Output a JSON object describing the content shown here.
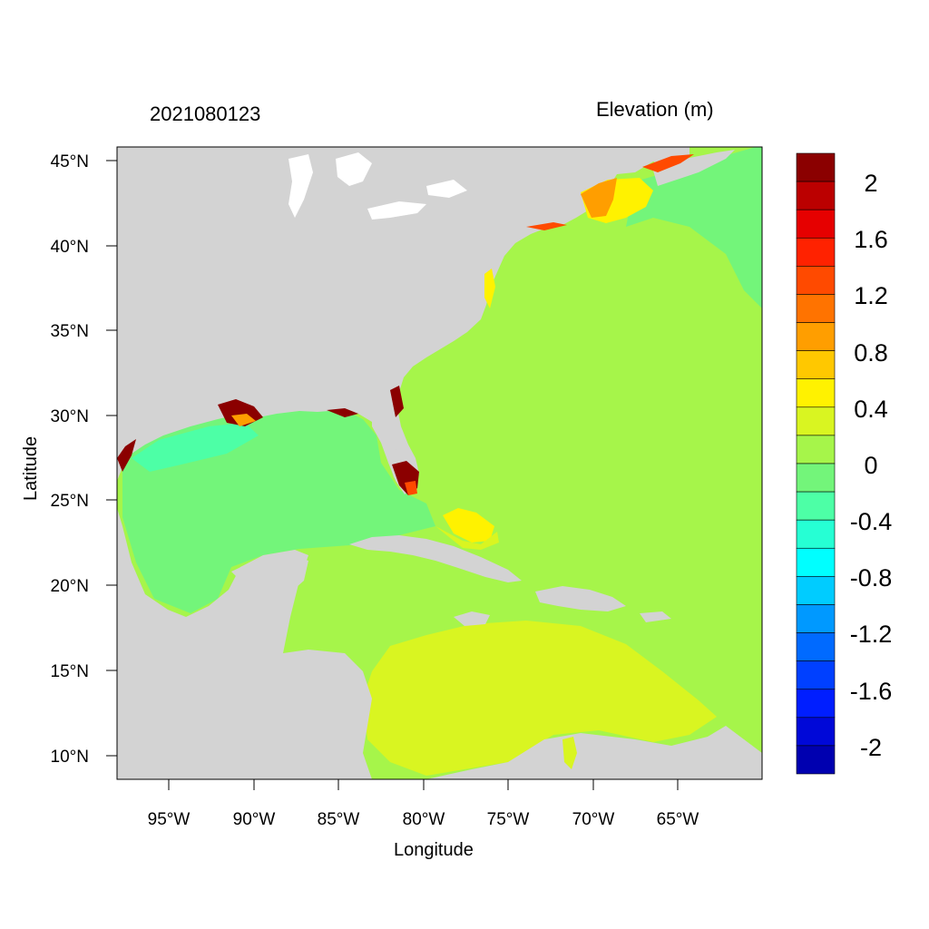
{
  "titles": {
    "left": "2021080123",
    "right": "Elevation (m)"
  },
  "axes": {
    "xlabel": "Longitude",
    "ylabel": "Latitude",
    "xticks": [
      "95°W",
      "90°W",
      "85°W",
      "80°W",
      "75°W",
      "70°W",
      "65°W"
    ],
    "yticks": [
      "45°N",
      "40°N",
      "35°N",
      "30°N",
      "25°N",
      "20°N",
      "15°N",
      "10°N"
    ]
  },
  "colorbar": {
    "labels": [
      "2",
      "1.6",
      "1.2",
      "0.8",
      "0.4",
      "0",
      "-0.4",
      "-0.8",
      "-1.2",
      "-1.6",
      "-2"
    ],
    "colors": [
      "#8b0000",
      "#bb0000",
      "#e60000",
      "#ff2200",
      "#ff4a00",
      "#ff7300",
      "#ff9e00",
      "#ffc800",
      "#fff200",
      "#d9f521",
      "#a6f54a",
      "#73f57a",
      "#4dffa6",
      "#26ffd4",
      "#00ffff",
      "#00ccff",
      "#0099ff",
      "#006aff",
      "#0040ff",
      "#001eff",
      "#0008d8",
      "#0000b0"
    ]
  },
  "colors": {
    "land": "#d3d3d3",
    "water_zero_plus": "#a6f54a",
    "water_zero_minus": "#73f57a",
    "water_low": "#4dffa6",
    "caribbean": "#d9f521",
    "surge_high": "#8b0000",
    "surge_mid": "#ff9e00",
    "surge_low": "#fff200"
  }
}
